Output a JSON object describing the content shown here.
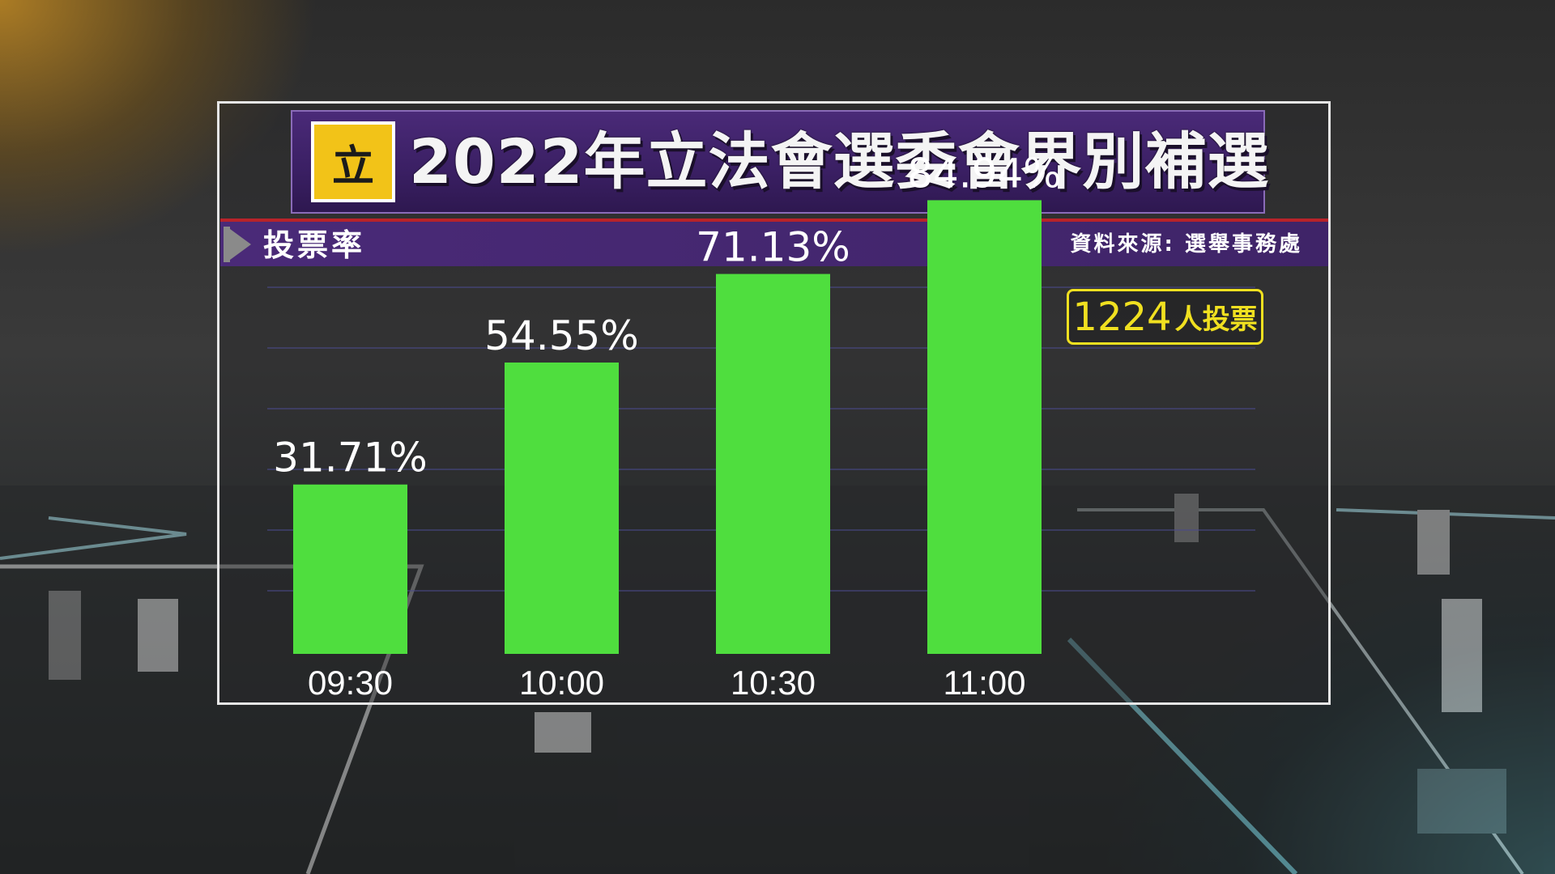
{
  "header": {
    "logo_char": "立",
    "title": "2022年立法會選委會界別補選"
  },
  "subheader": {
    "label": "投票率",
    "source": "資料來源: 選舉事務處"
  },
  "badge": {
    "count": "1224",
    "unit": "人投票"
  },
  "colors": {
    "bar": "#4fde3e",
    "title_bg": "#3a1f63",
    "badge": "#f0e020",
    "accent_red": "#b8232a"
  },
  "chart_data": {
    "type": "bar",
    "title": "投票率",
    "categories": [
      "09:30",
      "10:00",
      "10:30",
      "11:00"
    ],
    "values": [
      31.71,
      54.55,
      71.13,
      84.94
    ],
    "value_labels": [
      "31.71%",
      "54.55%",
      "71.13%",
      "84.94%"
    ],
    "ylim": [
      0,
      100
    ],
    "grid": true,
    "legend": "none"
  }
}
